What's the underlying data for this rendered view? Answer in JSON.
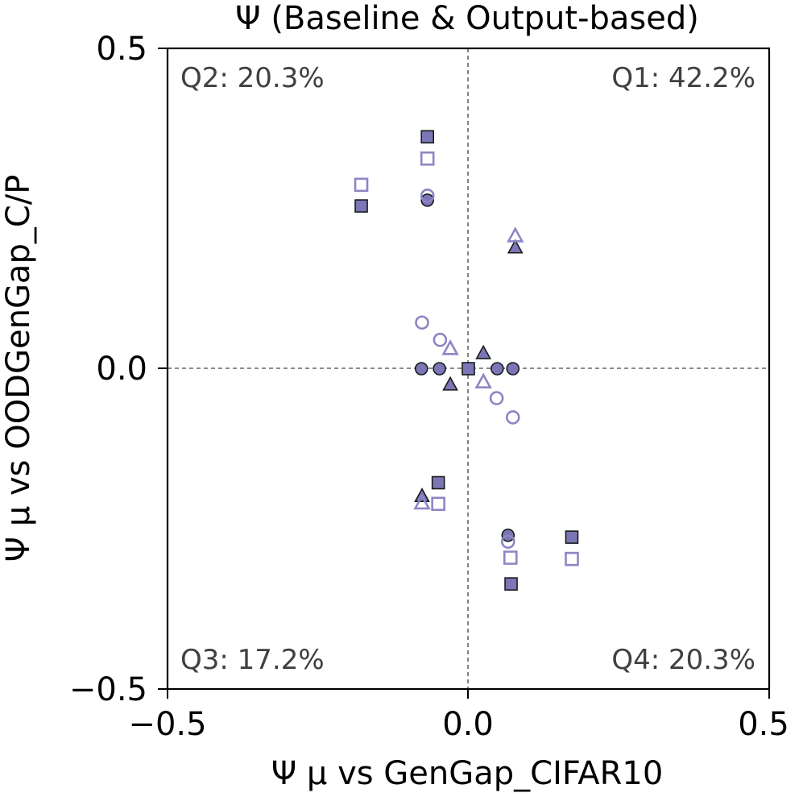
{
  "chart_data": {
    "type": "scatter",
    "title": "Ψ (Baseline & Output-based)",
    "xlabel": "Ψ µ vs GenGap_CIFAR10",
    "ylabel": "Ψ µ vs OODGenGap_C/P",
    "xlim": [
      -0.5,
      0.5
    ],
    "ylim": [
      -0.5,
      0.5
    ],
    "xticks": [
      "−0.5",
      "0.0",
      "0.5"
    ],
    "yticks": [
      "−0.5",
      "0.0",
      "0.5"
    ],
    "quadrant_labels": {
      "q1": "Q1: 42.2%",
      "q2": "Q2: 20.3%",
      "q3": "Q3: 17.2%",
      "q4": "Q4: 20.3%"
    },
    "colors": {
      "baseline_fill": "#7b76b6",
      "output_edge": "#8c86c4",
      "edge_dark": "#1a1a1a",
      "zero_line": "#666666"
    },
    "series": [
      {
        "name": "Baseline",
        "style": "filled",
        "points": [
          {
            "x": -0.068,
            "y": 0.362,
            "marker": "square"
          },
          {
            "x": -0.178,
            "y": 0.254,
            "marker": "square"
          },
          {
            "x": -0.068,
            "y": 0.263,
            "marker": "circle"
          },
          {
            "x": 0.078,
            "y": 0.189,
            "marker": "triangle"
          },
          {
            "x": -0.078,
            "y": 0.0,
            "marker": "circle"
          },
          {
            "x": -0.048,
            "y": 0.0,
            "marker": "circle"
          },
          {
            "x": 0.048,
            "y": 0.0,
            "marker": "circle"
          },
          {
            "x": 0.074,
            "y": 0.0,
            "marker": "circle"
          },
          {
            "x": 0.025,
            "y": 0.024,
            "marker": "triangle"
          },
          {
            "x": -0.03,
            "y": -0.025,
            "marker": "triangle"
          },
          {
            "x": 0.0,
            "y": 0.0,
            "marker": "square"
          },
          {
            "x": -0.05,
            "y": -0.178,
            "marker": "square"
          },
          {
            "x": -0.077,
            "y": -0.199,
            "marker": "triangle"
          },
          {
            "x": 0.066,
            "y": -0.26,
            "marker": "circle"
          },
          {
            "x": 0.172,
            "y": -0.263,
            "marker": "square"
          },
          {
            "x": 0.071,
            "y": -0.336,
            "marker": "square"
          }
        ]
      },
      {
        "name": "Output-based",
        "style": "hollow",
        "points": [
          {
            "x": -0.068,
            "y": 0.328,
            "marker": "square"
          },
          {
            "x": -0.178,
            "y": 0.287,
            "marker": "square"
          },
          {
            "x": -0.068,
            "y": 0.27,
            "marker": "circle"
          },
          {
            "x": 0.078,
            "y": 0.207,
            "marker": "triangle"
          },
          {
            "x": -0.077,
            "y": 0.072,
            "marker": "circle"
          },
          {
            "x": -0.047,
            "y": 0.045,
            "marker": "circle"
          },
          {
            "x": -0.03,
            "y": 0.031,
            "marker": "triangle"
          },
          {
            "x": 0.025,
            "y": -0.021,
            "marker": "triangle"
          },
          {
            "x": 0.047,
            "y": -0.046,
            "marker": "circle"
          },
          {
            "x": 0.074,
            "y": -0.076,
            "marker": "circle"
          },
          {
            "x": -0.077,
            "y": -0.21,
            "marker": "triangle"
          },
          {
            "x": -0.05,
            "y": -0.211,
            "marker": "square"
          },
          {
            "x": 0.066,
            "y": -0.27,
            "marker": "circle"
          },
          {
            "x": 0.07,
            "y": -0.295,
            "marker": "square"
          },
          {
            "x": 0.172,
            "y": -0.297,
            "marker": "square"
          }
        ]
      }
    ]
  }
}
